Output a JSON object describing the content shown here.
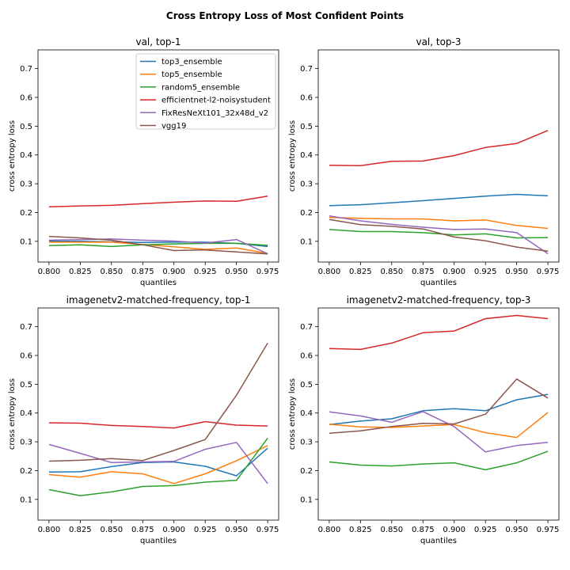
{
  "figure": {
    "suptitle": "Cross Entropy Loss of Most Confident Points"
  },
  "chart_data": [
    {
      "type": "line",
      "title": "val, top-1",
      "xlabel": "quantiles",
      "ylabel": "cross entropy loss",
      "x": [
        0.8,
        0.825,
        0.85,
        0.875,
        0.9,
        0.925,
        0.95,
        0.975
      ],
      "xticks": [
        "0.800",
        "0.825",
        "0.850",
        "0.875",
        "0.900",
        "0.925",
        "0.950",
        "0.975"
      ],
      "yticks": [
        "0.1",
        "0.2",
        "0.3",
        "0.4",
        "0.5",
        "0.6",
        "0.7"
      ],
      "xlim": [
        0.7912,
        0.9838
      ],
      "ylim": [
        0.028,
        0.765
      ],
      "legend": "upper-right",
      "series": [
        {
          "name": "top3_ensemble",
          "color": "#1f77b4",
          "values": [
            0.1,
            0.1,
            0.098,
            0.096,
            0.097,
            0.097,
            0.093,
            0.082
          ]
        },
        {
          "name": "top5_ensemble",
          "color": "#ff7f0e",
          "values": [
            0.097,
            0.097,
            0.097,
            0.089,
            0.081,
            0.072,
            0.077,
            0.058
          ]
        },
        {
          "name": "random5_ensemble",
          "color": "#2ca02c",
          "values": [
            0.085,
            0.088,
            0.082,
            0.088,
            0.091,
            0.093,
            0.093,
            0.086
          ]
        },
        {
          "name": "efficientnet-l2-noisystudent",
          "color": "#d62728",
          "values": [
            0.22,
            0.223,
            0.225,
            0.231,
            0.236,
            0.24,
            0.239,
            0.257
          ]
        },
        {
          "name": "FixResNeXt101_32x48d_v2",
          "color": "#9467bd",
          "values": [
            0.104,
            0.106,
            0.108,
            0.104,
            0.101,
            0.094,
            0.106,
            0.057
          ]
        },
        {
          "name": "vgg19",
          "color": "#8c564b",
          "values": [
            0.117,
            0.112,
            0.104,
            0.088,
            0.068,
            0.07,
            0.063,
            0.056
          ]
        }
      ]
    },
    {
      "type": "line",
      "title": "val, top-3",
      "xlabel": "quantiles",
      "ylabel": "cross entropy loss",
      "x": [
        0.8,
        0.825,
        0.85,
        0.875,
        0.9,
        0.925,
        0.95,
        0.975
      ],
      "xticks": [
        "0.800",
        "0.825",
        "0.850",
        "0.875",
        "0.900",
        "0.925",
        "0.950",
        "0.975"
      ],
      "yticks": [
        "0.1",
        "0.2",
        "0.3",
        "0.4",
        "0.5",
        "0.6",
        "0.7"
      ],
      "xlim": [
        0.7912,
        0.9838
      ],
      "ylim": [
        0.028,
        0.765
      ],
      "series": [
        {
          "name": "top3_ensemble",
          "color": "#1f77b4",
          "values": [
            0.224,
            0.227,
            0.234,
            0.241,
            0.249,
            0.257,
            0.263,
            0.258
          ]
        },
        {
          "name": "top5_ensemble",
          "color": "#ff7f0e",
          "values": [
            0.183,
            0.18,
            0.178,
            0.178,
            0.171,
            0.174,
            0.155,
            0.145
          ]
        },
        {
          "name": "random5_ensemble",
          "color": "#2ca02c",
          "values": [
            0.141,
            0.134,
            0.134,
            0.13,
            0.122,
            0.126,
            0.112,
            0.113
          ]
        },
        {
          "name": "efficientnet-l2-noisystudent",
          "color": "#d62728",
          "values": [
            0.364,
            0.363,
            0.378,
            0.379,
            0.398,
            0.426,
            0.44,
            0.485
          ]
        },
        {
          "name": "FixResNeXt101_32x48d_v2",
          "color": "#9467bd",
          "values": [
            0.188,
            0.171,
            0.159,
            0.149,
            0.141,
            0.143,
            0.13,
            0.057
          ]
        },
        {
          "name": "vgg19",
          "color": "#8c564b",
          "values": [
            0.176,
            0.158,
            0.152,
            0.143,
            0.115,
            0.102,
            0.08,
            0.066
          ]
        }
      ]
    },
    {
      "type": "line",
      "title": "imagenetv2-matched-frequency, top-1",
      "xlabel": "quantiles",
      "ylabel": "cross entropy loss",
      "x": [
        0.8,
        0.825,
        0.85,
        0.875,
        0.9,
        0.925,
        0.95,
        0.975
      ],
      "xticks": [
        "0.800",
        "0.825",
        "0.850",
        "0.875",
        "0.900",
        "0.925",
        "0.950",
        "0.975"
      ],
      "yticks": [
        "0.1",
        "0.2",
        "0.3",
        "0.4",
        "0.5",
        "0.6",
        "0.7"
      ],
      "xlim": [
        0.7912,
        0.9838
      ],
      "ylim": [
        0.028,
        0.765
      ],
      "series": [
        {
          "name": "top3_ensemble",
          "color": "#1f77b4",
          "values": [
            0.195,
            0.196,
            0.214,
            0.228,
            0.23,
            0.215,
            0.182,
            0.278
          ]
        },
        {
          "name": "top5_ensemble",
          "color": "#ff7f0e",
          "values": [
            0.186,
            0.177,
            0.196,
            0.189,
            0.155,
            0.189,
            0.234,
            0.287
          ]
        },
        {
          "name": "random5_ensemble",
          "color": "#2ca02c",
          "values": [
            0.134,
            0.113,
            0.126,
            0.145,
            0.148,
            0.16,
            0.166,
            0.313
          ]
        },
        {
          "name": "efficientnet-l2-noisystudent",
          "color": "#d62728",
          "values": [
            0.366,
            0.365,
            0.357,
            0.353,
            0.348,
            0.37,
            0.358,
            0.355
          ]
        },
        {
          "name": "FixResNeXt101_32x48d_v2",
          "color": "#9467bd",
          "values": [
            0.291,
            0.26,
            0.228,
            0.23,
            0.232,
            0.274,
            0.298,
            0.155
          ]
        },
        {
          "name": "vgg19",
          "color": "#8c564b",
          "values": [
            0.233,
            0.236,
            0.242,
            0.235,
            0.27,
            0.308,
            0.462,
            0.643
          ]
        }
      ]
    },
    {
      "type": "line",
      "title": "imagenetv2-matched-frequency, top-3",
      "xlabel": "quantiles",
      "ylabel": "cross entropy loss",
      "x": [
        0.8,
        0.825,
        0.85,
        0.875,
        0.9,
        0.925,
        0.95,
        0.975
      ],
      "xticks": [
        "0.800",
        "0.825",
        "0.850",
        "0.875",
        "0.900",
        "0.925",
        "0.950",
        "0.975"
      ],
      "yticks": [
        "0.1",
        "0.2",
        "0.3",
        "0.4",
        "0.5",
        "0.6",
        "0.7"
      ],
      "xlim": [
        0.7912,
        0.9838
      ],
      "ylim": [
        0.028,
        0.765
      ],
      "series": [
        {
          "name": "top3_ensemble",
          "color": "#1f77b4",
          "values": [
            0.36,
            0.372,
            0.38,
            0.408,
            0.415,
            0.408,
            0.446,
            0.465
          ]
        },
        {
          "name": "top5_ensemble",
          "color": "#ff7f0e",
          "values": [
            0.361,
            0.352,
            0.35,
            0.355,
            0.36,
            0.332,
            0.315,
            0.402
          ]
        },
        {
          "name": "random5_ensemble",
          "color": "#2ca02c",
          "values": [
            0.23,
            0.219,
            0.216,
            0.223,
            0.227,
            0.203,
            0.227,
            0.267
          ]
        },
        {
          "name": "efficientnet-l2-noisystudent",
          "color": "#d62728",
          "values": [
            0.624,
            0.621,
            0.643,
            0.679,
            0.685,
            0.728,
            0.739,
            0.728
          ]
        },
        {
          "name": "FixResNeXt101_32x48d_v2",
          "color": "#9467bd",
          "values": [
            0.404,
            0.39,
            0.368,
            0.405,
            0.353,
            0.265,
            0.287,
            0.298
          ]
        },
        {
          "name": "vgg19",
          "color": "#8c564b",
          "values": [
            0.33,
            0.338,
            0.353,
            0.364,
            0.362,
            0.396,
            0.518,
            0.452
          ]
        }
      ]
    }
  ]
}
